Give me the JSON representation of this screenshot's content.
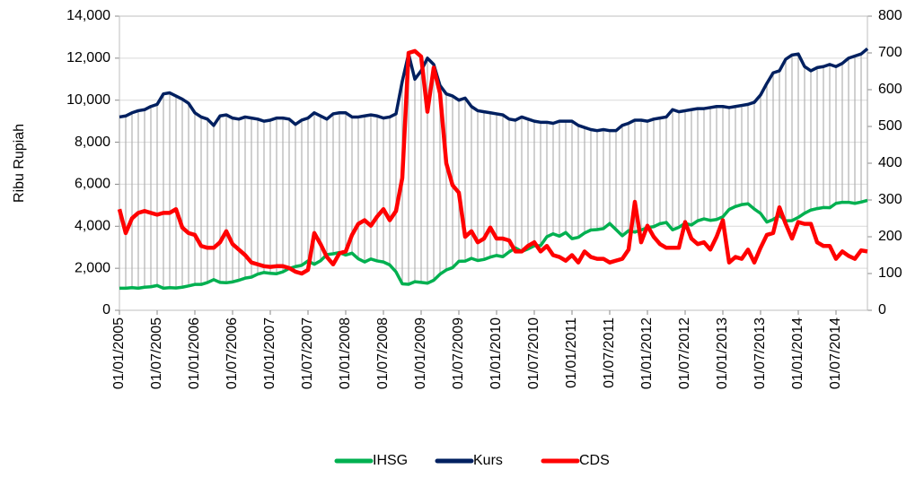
{
  "chart_data": {
    "type": "line",
    "y_label": "Ribu Rupiah",
    "categories": [
      "01/01/2005",
      null,
      null,
      null,
      null,
      null,
      "01/07/2005",
      null,
      null,
      null,
      null,
      null,
      "01/01/2006",
      null,
      null,
      null,
      null,
      null,
      "01/07/2006",
      null,
      null,
      null,
      null,
      null,
      "01/01/2007",
      null,
      null,
      null,
      null,
      null,
      "01/07/2007",
      null,
      null,
      null,
      null,
      null,
      "01/01/2008",
      null,
      null,
      null,
      null,
      null,
      "01/07/2008",
      null,
      null,
      null,
      null,
      null,
      "01/01/2009",
      null,
      null,
      null,
      null,
      null,
      "01/07/2009",
      null,
      null,
      null,
      null,
      null,
      "01/01/2010",
      null,
      null,
      null,
      null,
      null,
      "01/07/2010",
      null,
      null,
      null,
      null,
      null,
      "01/01/2011",
      null,
      null,
      null,
      null,
      null,
      "01/07/2011",
      null,
      null,
      null,
      null,
      null,
      "01/01/2012",
      null,
      null,
      null,
      null,
      null,
      "01/07/2012",
      null,
      null,
      null,
      null,
      null,
      "01/01/2013",
      null,
      null,
      null,
      null,
      null,
      "01/07/2013",
      null,
      null,
      null,
      null,
      null,
      "01/01/2014",
      null,
      null,
      null,
      null,
      null,
      "01/07/2014",
      null,
      null,
      null,
      null,
      null
    ],
    "series": [
      {
        "name": "IHSG",
        "color": "#00b050",
        "values": [
          1050,
          1050,
          1080,
          1050,
          1100,
          1120,
          1180,
          1050,
          1080,
          1060,
          1100,
          1160,
          1230,
          1230,
          1320,
          1460,
          1330,
          1310,
          1350,
          1430,
          1530,
          1580,
          1720,
          1800,
          1760,
          1740,
          1830,
          1990,
          2080,
          2140,
          2350,
          2190,
          2360,
          2650,
          2690,
          2750,
          2630,
          2720,
          2450,
          2300,
          2440,
          2350,
          2300,
          2160,
          1830,
          1260,
          1240,
          1360,
          1330,
          1290,
          1430,
          1720,
          1920,
          2030,
          2330,
          2340,
          2470,
          2370,
          2420,
          2530,
          2610,
          2550,
          2780,
          2970,
          2800,
          2920,
          3070,
          3080,
          3500,
          3640,
          3530,
          3700,
          3410,
          3470,
          3680,
          3820,
          3840,
          3890,
          4130,
          3840,
          3550,
          3790,
          3720,
          3820,
          3940,
          3980,
          4120,
          4180,
          3830,
          3950,
          4140,
          4060,
          4260,
          4350,
          4280,
          4320,
          4450,
          4800,
          4940,
          5030,
          5070,
          4820,
          4610,
          4200,
          4320,
          4510,
          4260,
          4270,
          4420,
          4620,
          4770,
          4840,
          4890,
          4880,
          5090,
          5140,
          5140,
          5090,
          5150,
          5230
        ]
      },
      {
        "name": "Kurs",
        "color": "#002060",
        "values": [
          9200,
          9250,
          9400,
          9500,
          9550,
          9700,
          9800,
          10300,
          10350,
          10200,
          10050,
          9850,
          9400,
          9200,
          9100,
          8800,
          9250,
          9300,
          9150,
          9100,
          9200,
          9150,
          9100,
          9000,
          9050,
          9150,
          9150,
          9100,
          8850,
          9050,
          9150,
          9400,
          9250,
          9100,
          9350,
          9400,
          9400,
          9200,
          9200,
          9250,
          9300,
          9250,
          9150,
          9200,
          9350,
          10900,
          12200,
          11000,
          11400,
          12000,
          11700,
          10700,
          10300,
          10200,
          10000,
          10100,
          9700,
          9500,
          9450,
          9400,
          9350,
          9300,
          9100,
          9050,
          9200,
          9100,
          9000,
          8950,
          8950,
          8900,
          9000,
          9000,
          9000,
          8800,
          8700,
          8600,
          8550,
          8600,
          8550,
          8550,
          8800,
          8900,
          9050,
          9050,
          9000,
          9100,
          9150,
          9200,
          9550,
          9450,
          9500,
          9550,
          9600,
          9600,
          9650,
          9700,
          9700,
          9650,
          9700,
          9750,
          9800,
          9900,
          10250,
          10800,
          11300,
          11400,
          11950,
          12150,
          12200,
          11600,
          11400,
          11550,
          11600,
          11700,
          11600,
          11750,
          12000,
          12100,
          12200,
          12450
        ]
      },
      {
        "name": "CDS",
        "color": "#ff0000",
        "axis": "y2",
        "values": [
          275,
          210,
          250,
          265,
          270,
          265,
          260,
          265,
          265,
          275,
          225,
          210,
          205,
          175,
          170,
          170,
          185,
          215,
          180,
          165,
          150,
          130,
          125,
          120,
          118,
          120,
          120,
          115,
          105,
          100,
          110,
          210,
          180,
          145,
          125,
          155,
          160,
          205,
          235,
          245,
          230,
          255,
          275,
          245,
          270,
          360,
          700,
          705,
          690,
          540,
          660,
          590,
          400,
          340,
          320,
          200,
          215,
          185,
          195,
          225,
          195,
          195,
          190,
          160,
          160,
          175,
          185,
          160,
          175,
          150,
          145,
          135,
          150,
          130,
          160,
          145,
          140,
          140,
          130,
          135,
          140,
          165,
          295,
          185,
          230,
          200,
          180,
          170,
          170,
          170,
          240,
          195,
          180,
          185,
          165,
          200,
          245,
          130,
          145,
          140,
          165,
          130,
          170,
          205,
          210,
          280,
          235,
          195,
          240,
          235,
          235,
          185,
          175,
          175,
          140,
          160,
          148,
          140,
          163,
          160
        ]
      }
    ],
    "ylim": [
      0,
      14000
    ],
    "yticks": [
      0,
      {
        "value": 2000,
        "label": "2,000"
      },
      {
        "value": 4000,
        "label": "4,000"
      },
      {
        "value": 6000,
        "label": "6,000"
      },
      {
        "value": 8000,
        "label": "8,000"
      },
      {
        "value": 10000,
        "label": "10,000"
      },
      {
        "value": 12000,
        "label": "12,000"
      },
      {
        "value": 14000,
        "label": "14,000"
      }
    ],
    "y2lim": [
      0,
      800
    ],
    "y2ticks": [
      0,
      100,
      200,
      300,
      400,
      500,
      600,
      700,
      800
    ],
    "grid": true,
    "legend": "bottom"
  }
}
